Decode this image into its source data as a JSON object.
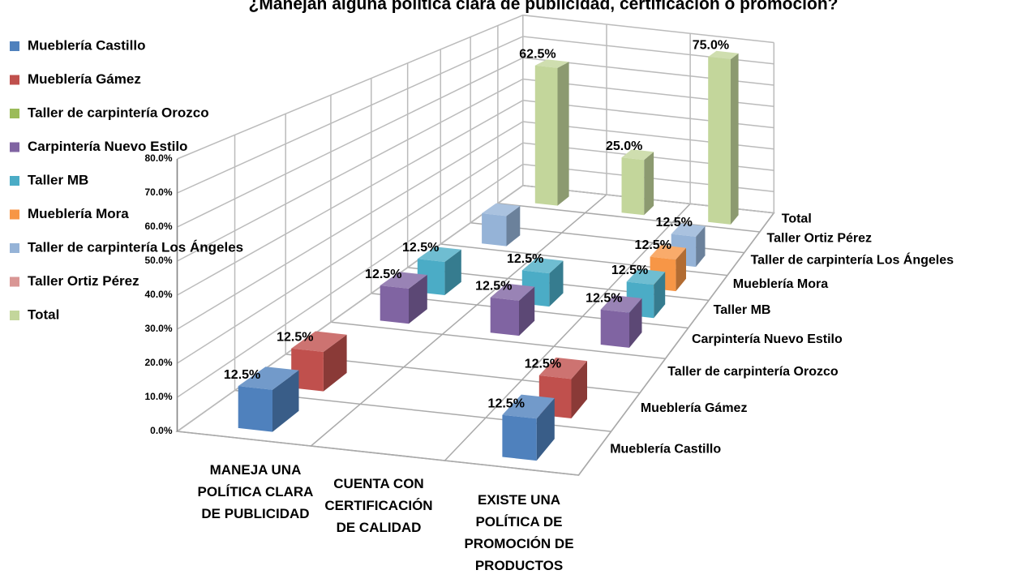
{
  "chart_data": {
    "type": "bar3d",
    "title": "¿Manejan alguna política clara de publicidad, certificación o promoción?",
    "categories": [
      "MANEJA UNA POLÍTICA CLARA DE PUBLICIDAD",
      "CUENTA CON CERTIFICACIÓN DE CALIDAD",
      "EXISTE UNA POLÍTICA DE PROMOCIÓN DE PRODUCTOS"
    ],
    "series": [
      {
        "name": "Mueblería Castillo",
        "color": "#4f81bd",
        "values": [
          12.5,
          null,
          12.5
        ],
        "value_labels": [
          "12.5%",
          null,
          "12.5%"
        ]
      },
      {
        "name": "Mueblería Gámez",
        "color": "#c0504d",
        "values": [
          12.5,
          null,
          12.5
        ],
        "value_labels": [
          "12.5%",
          null,
          "12.5%"
        ]
      },
      {
        "name": "Taller de carpintería Orozco",
        "color": "#9bbb59",
        "values": [
          null,
          null,
          null
        ],
        "value_labels": [
          null,
          null,
          null
        ]
      },
      {
        "name": "Carpintería Nuevo Estilo",
        "color": "#8064a2",
        "values": [
          12.5,
          12.5,
          12.5
        ],
        "value_labels": [
          "12.5%",
          "12.5%",
          "12.5%"
        ]
      },
      {
        "name": "Taller MB",
        "color": "#4bacc6",
        "values": [
          12.5,
          12.5,
          12.5
        ],
        "value_labels": [
          "12.5%",
          "12.5%",
          "12.5%"
        ]
      },
      {
        "name": "Mueblería Mora",
        "color": "#f79646",
        "values": [
          null,
          null,
          12.5
        ],
        "value_labels": [
          null,
          null,
          "12.5%"
        ]
      },
      {
        "name": "Taller de carpintería Los Ángeles",
        "color": "#95b3d7",
        "values": [
          12.5,
          null,
          12.5
        ],
        "value_labels": [
          null,
          null,
          "12.5%"
        ]
      },
      {
        "name": "Taller Ortiz Pérez",
        "color": "#d99694",
        "values": [
          null,
          null,
          null
        ],
        "value_labels": [
          null,
          null,
          null
        ]
      },
      {
        "name": "Total",
        "color": "#c3d69b",
        "values": [
          62.5,
          25.0,
          75.0
        ],
        "value_labels": [
          "62.5%",
          "25.0%",
          "75.0%"
        ]
      }
    ],
    "ylim": [
      0,
      80
    ],
    "yticks": [
      {
        "value": 0,
        "label": "0.0%"
      },
      {
        "value": 10,
        "label": "10.0%"
      },
      {
        "value": 20,
        "label": "20.0%"
      },
      {
        "value": 30,
        "label": "30.0%"
      },
      {
        "value": 40,
        "label": "40.0%"
      },
      {
        "value": 50,
        "label": "50.0%"
      },
      {
        "value": 60,
        "label": "60.0%"
      },
      {
        "value": 70,
        "label": "70.0%"
      },
      {
        "value": 80,
        "label": "80.0%"
      }
    ],
    "grid": true,
    "legend": "left"
  }
}
